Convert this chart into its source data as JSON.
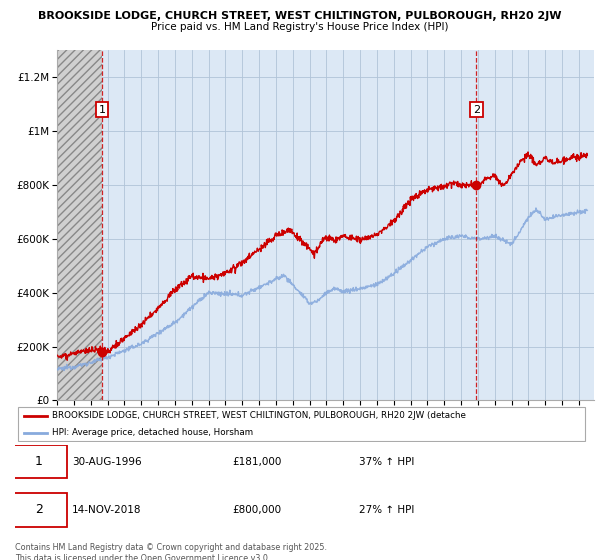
{
  "title1": "BROOKSIDE LODGE, CHURCH STREET, WEST CHILTINGTON, PULBOROUGH, RH20 2JW",
  "title2": "Price paid vs. HM Land Registry's House Price Index (HPI)",
  "ytick_values": [
    0,
    200000,
    400000,
    600000,
    800000,
    1000000,
    1200000
  ],
  "ylim": [
    0,
    1300000
  ],
  "purchase1_date": "30-AUG-1996",
  "purchase1_price": 181000,
  "purchase1_label": "37% ↑ HPI",
  "purchase2_date": "14-NOV-2018",
  "purchase2_price": 800000,
  "purchase2_label": "27% ↑ HPI",
  "legend_line1": "BROOKSIDE LODGE, CHURCH STREET, WEST CHILTINGTON, PULBOROUGH, RH20 2JW (detache",
  "legend_line2": "HPI: Average price, detached house, Horsham",
  "footer": "Contains HM Land Registry data © Crown copyright and database right 2025.\nThis data is licensed under the Open Government Licence v3.0.",
  "property_color": "#cc0000",
  "hpi_color": "#88aadd",
  "marker_color": "#cc0000",
  "dashed_vline_color": "#cc0000",
  "plot_bg_color": "#dce8f5",
  "hatch_region_color": "#c8c8c8"
}
